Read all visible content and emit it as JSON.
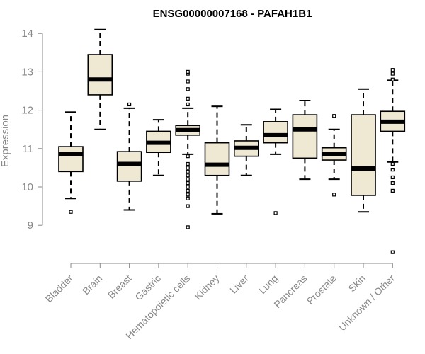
{
  "chart_data": {
    "type": "boxplot",
    "title": "ENSG00000007168 - PAFAH1B1",
    "xlabel": "",
    "ylabel": "Expression",
    "ylim": [
      8.2,
      14.3
    ],
    "yticks": [
      9,
      10,
      11,
      12,
      13,
      14
    ],
    "box_fill": "#efe8d2",
    "line_color": "#000000",
    "axis_color": "#888888",
    "categories": [
      "Bladder",
      "Brain",
      "Breast",
      "Gastric",
      "Hematopoietic cells",
      "Kidney",
      "Liver",
      "Lung",
      "Pancreas",
      "Prostate",
      "Skin",
      "Unknown / Other"
    ],
    "series": [
      {
        "name": "Bladder",
        "whisker_low": 9.7,
        "q1": 10.4,
        "median": 10.85,
        "q3": 11.05,
        "whisker_high": 11.95,
        "outliers": [
          9.35
        ]
      },
      {
        "name": "Brain",
        "whisker_low": 11.5,
        "q1": 12.4,
        "median": 12.8,
        "q3": 13.45,
        "whisker_high": 14.1,
        "outliers": []
      },
      {
        "name": "Breast",
        "whisker_low": 9.4,
        "q1": 10.15,
        "median": 10.6,
        "q3": 10.92,
        "whisker_high": 12.05,
        "outliers": [
          12.15
        ]
      },
      {
        "name": "Gastric",
        "whisker_low": 10.3,
        "q1": 10.9,
        "median": 11.15,
        "q3": 11.45,
        "whisker_high": 11.75,
        "outliers": []
      },
      {
        "name": "Hematopoietic cells",
        "whisker_low": 10.85,
        "q1": 11.35,
        "median": 11.48,
        "q3": 11.6,
        "whisker_high": 12.05,
        "outliers": [
          12.15,
          12.3,
          12.55,
          12.75,
          12.95,
          13.0,
          10.8,
          10.6,
          10.5,
          10.4,
          10.3,
          10.2,
          10.1,
          10.0,
          9.9,
          9.8,
          9.7,
          9.5,
          8.95
        ]
      },
      {
        "name": "Kidney",
        "whisker_low": 9.3,
        "q1": 10.3,
        "median": 10.58,
        "q3": 11.15,
        "whisker_high": 12.1,
        "outliers": []
      },
      {
        "name": "Liver",
        "whisker_low": 10.3,
        "q1": 10.8,
        "median": 11.02,
        "q3": 11.2,
        "whisker_high": 11.62,
        "outliers": []
      },
      {
        "name": "Lung",
        "whisker_low": 10.85,
        "q1": 11.15,
        "median": 11.35,
        "q3": 11.7,
        "whisker_high": 12.02,
        "outliers": [
          9.32
        ]
      },
      {
        "name": "Pancreas",
        "whisker_low": 10.2,
        "q1": 10.75,
        "median": 11.5,
        "q3": 11.88,
        "whisker_high": 12.25,
        "outliers": []
      },
      {
        "name": "Prostate",
        "whisker_low": 10.2,
        "q1": 10.7,
        "median": 10.85,
        "q3": 11.02,
        "whisker_high": 11.5,
        "outliers": [
          11.85,
          9.8
        ]
      },
      {
        "name": "Skin",
        "whisker_low": 9.35,
        "q1": 9.78,
        "median": 10.48,
        "q3": 11.88,
        "whisker_high": 12.55,
        "outliers": []
      },
      {
        "name": "Unknown / Other",
        "whisker_low": 10.65,
        "q1": 11.45,
        "median": 11.7,
        "q3": 11.97,
        "whisker_high": 12.78,
        "outliers": [
          13.05,
          12.95,
          12.8,
          10.6,
          10.45,
          10.25,
          10.1,
          9.9,
          8.3
        ]
      }
    ]
  }
}
